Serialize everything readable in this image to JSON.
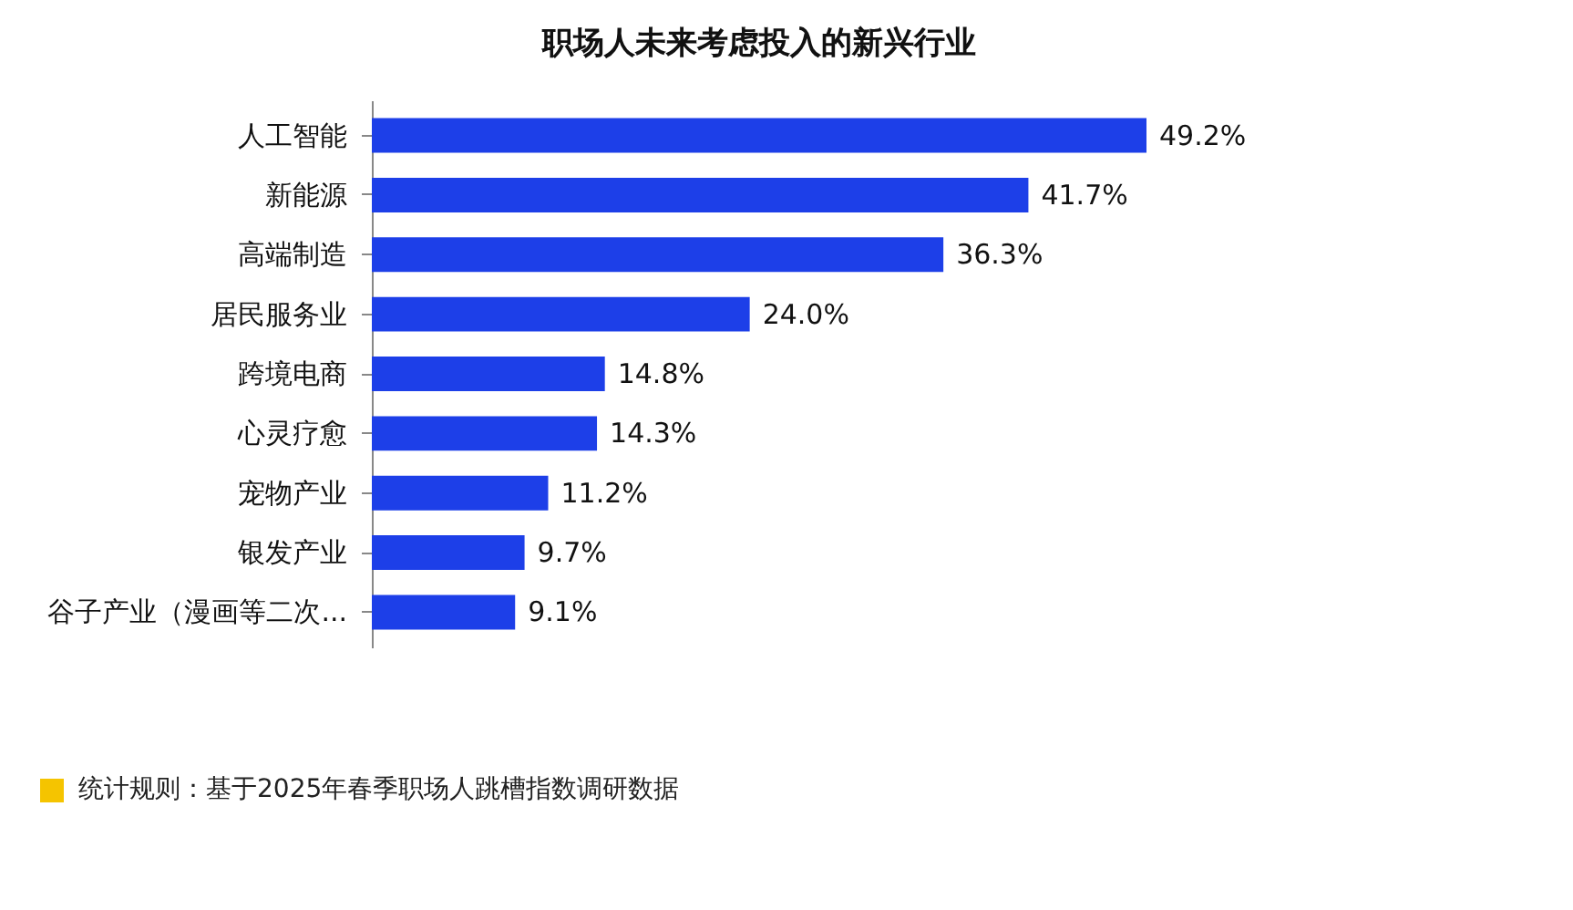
{
  "chart_data": {
    "type": "bar",
    "orientation": "horizontal",
    "title": "职场人未来考虑投入的新兴行业",
    "categories": [
      "人工智能",
      "新能源",
      "高端制造",
      "居民服务业",
      "跨境电商",
      "心灵疗愈",
      "宠物产业",
      "银发产业",
      "谷子产业（漫画等二次..."
    ],
    "values": [
      49.2,
      41.7,
      36.3,
      24.0,
      14.8,
      14.3,
      11.2,
      9.7,
      9.1
    ],
    "value_labels": [
      "49.2%",
      "41.7%",
      "36.3%",
      "24.0%",
      "14.8%",
      "14.3%",
      "11.2%",
      "9.7%",
      "9.1%"
    ],
    "color": "#1d3fe8",
    "relative": false,
    "annotations": [
      "统计规则：基于2025年春季职场人跳槽指数调研数据"
    ]
  }
}
